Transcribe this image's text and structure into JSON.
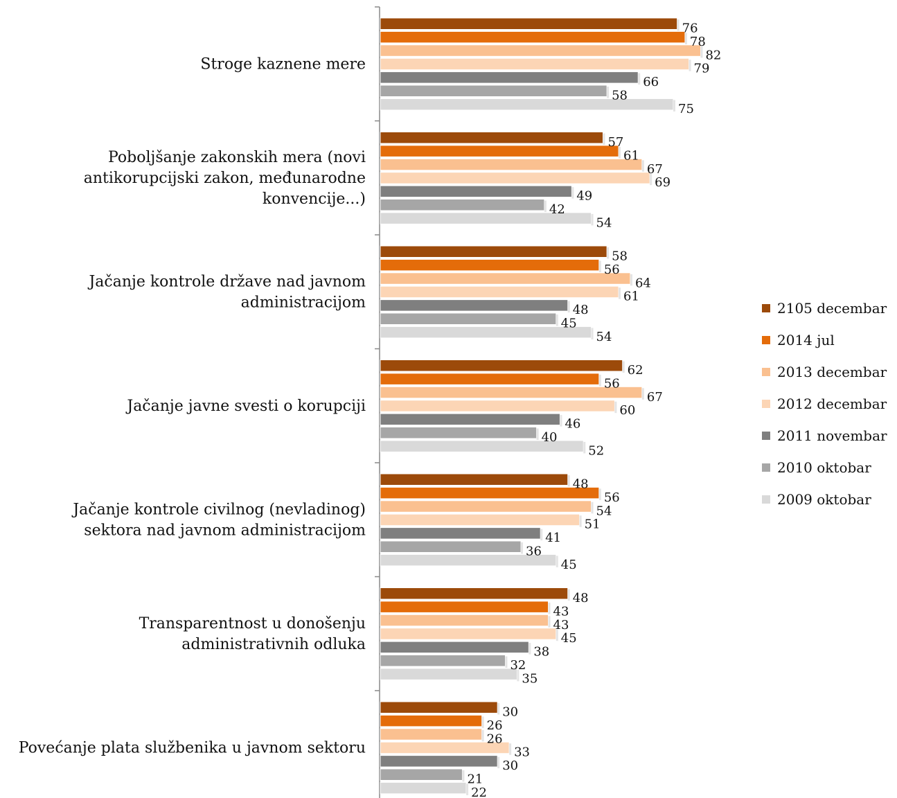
{
  "chart_data": {
    "type": "bar",
    "orientation": "horizontal",
    "categories": [
      [
        "Stroge kaznene mere"
      ],
      [
        "Poboljšanje zakonskih mera (novi",
        "antikorupcijski zakon, međunarodne",
        "konvencije...)"
      ],
      [
        "Jačanje kontrole države nad javnom",
        "administracijom"
      ],
      [
        "Jačanje javne svesti o korupciji"
      ],
      [
        "Jačanje kontrole civilnog (nevladinog)",
        "sektora nad  javnom administracijom"
      ],
      [
        "Transparentnost u donošenju",
        "administrativnih odluka"
      ],
      [
        "Povećanje plata službenika u javnom sektoru"
      ]
    ],
    "series": [
      {
        "name": "2105 decembar",
        "color": "#9C4A0A",
        "values": [
          76,
          57,
          58,
          62,
          48,
          48,
          30
        ]
      },
      {
        "name": "2014 jul",
        "color": "#E46C0A",
        "values": [
          78,
          61,
          56,
          56,
          56,
          43,
          26
        ]
      },
      {
        "name": "2013 decembar",
        "color": "#FAC090",
        "values": [
          82,
          67,
          64,
          67,
          54,
          43,
          26
        ]
      },
      {
        "name": "2012 decembar",
        "color": "#FCD5B5",
        "values": [
          79,
          69,
          61,
          60,
          51,
          45,
          33
        ]
      },
      {
        "name": "2011 novembar",
        "color": "#7F7F7F",
        "values": [
          66,
          49,
          48,
          46,
          41,
          38,
          30
        ]
      },
      {
        "name": "2010 oktobar",
        "color": "#A6A6A6",
        "values": [
          58,
          42,
          45,
          40,
          36,
          32,
          21
        ]
      },
      {
        "name": "2009 oktobar",
        "color": "#D9D9D9",
        "values": [
          75,
          54,
          54,
          52,
          45,
          35,
          22
        ]
      }
    ],
    "xlim": [
      0,
      100
    ],
    "grid": false,
    "legend": "right",
    "title": "",
    "xlabel": "",
    "ylabel": ""
  }
}
